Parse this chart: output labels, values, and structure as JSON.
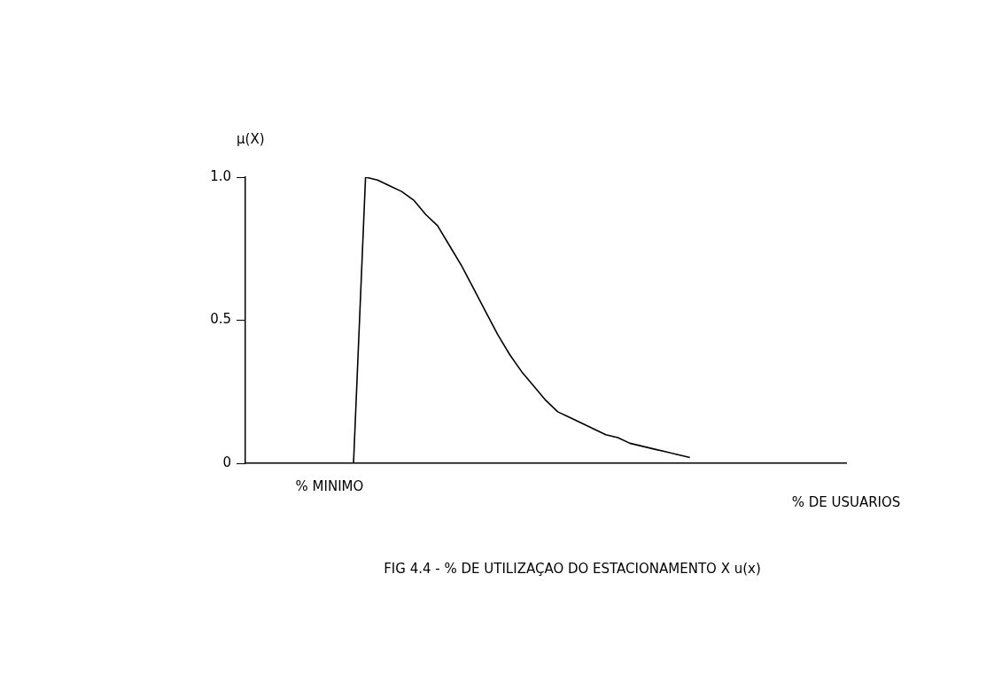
{
  "chart_data": {
    "type": "line",
    "title": "FIG 4.4 - % DE UTILIZAÇAO DO ESTACIONAMENTO X u(x)",
    "xlabel": "% DE USUARIOS",
    "ylabel": "μ(X)",
    "categories": [
      null,
      null,
      null,
      null,
      null,
      null,
      null,
      "% MINIMO",
      null,
      null,
      null,
      null,
      null,
      null,
      null,
      null,
      null,
      null,
      null,
      null,
      null,
      null,
      null,
      null,
      null,
      null,
      null,
      null,
      null,
      null,
      null,
      null,
      null,
      null,
      null,
      null,
      null,
      null,
      null,
      null,
      null,
      null,
      null,
      null,
      null,
      null,
      null,
      null,
      null,
      null,
      null
    ],
    "series": [
      {
        "color": "#000000",
        "values": [
          0,
          0,
          0,
          0,
          0,
          0,
          0,
          0,
          0,
          0,
          1,
          0.99,
          0.97,
          0.95,
          0.92,
          0.87,
          0.83,
          0.76,
          0.69,
          0.61,
          0.53,
          0.45,
          0.38,
          0.32,
          0.27,
          0.22,
          0.18,
          0.16,
          0.14,
          0.12,
          0.1,
          0.09,
          0.07,
          0.06,
          0.05,
          0.04,
          0.03,
          0.02,
          null,
          null,
          null,
          null,
          null,
          null,
          null,
          null,
          null,
          null,
          null,
          null,
          null
        ]
      }
    ],
    "ylim": [
      0,
      1
    ],
    "yticks": [
      {
        "value": 0,
        "label": "0"
      },
      {
        "value": 0.5,
        "label": "0.5"
      },
      {
        "value": 1,
        "label": "1.0"
      }
    ],
    "grid": false,
    "legend": false,
    "marker": "none",
    "line_style": "solid"
  }
}
